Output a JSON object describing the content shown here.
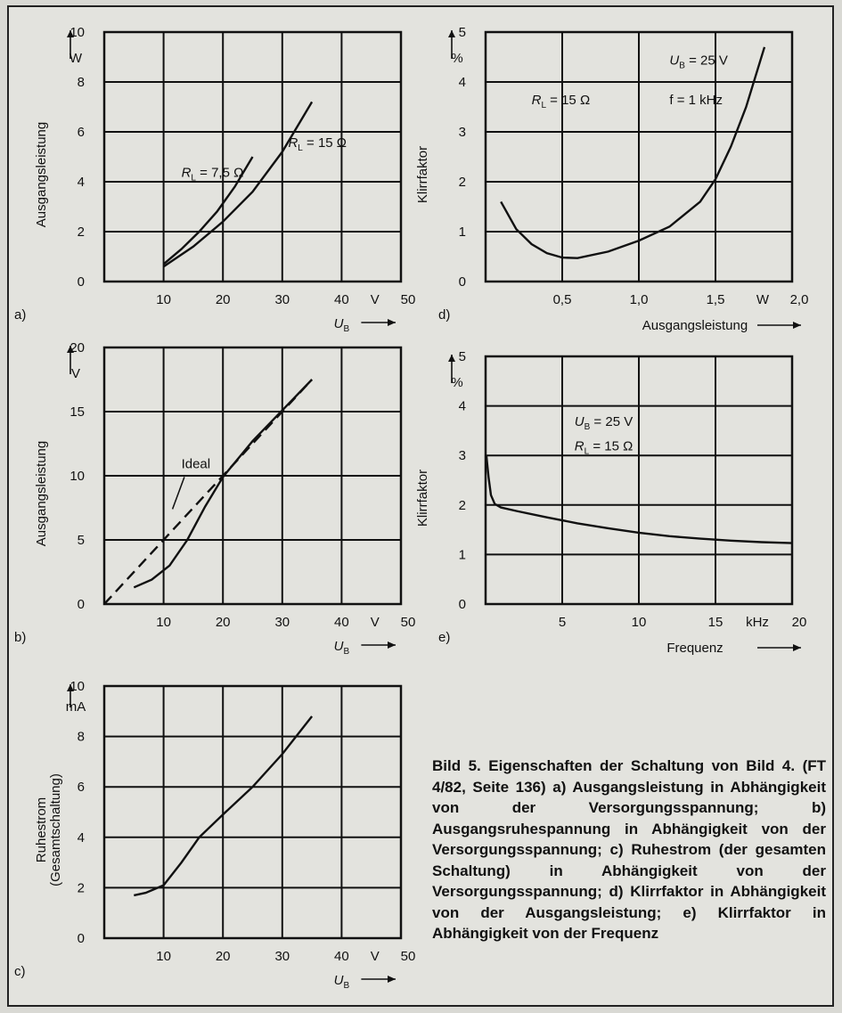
{
  "caption": "Bild 5. Eigenschaften der Schaltung von Bild 4. (FT 4/82, Seite 136) a) Ausgangsleistung in Abhängigkeit von der Versorgungsspannung; b) Ausgangsruhespannung in Abhängigkeit von der Versorgungsspannung; c) Ruhestrom (der gesamten Schaltung) in Abhängigkeit von der Versorgungsspannung; d) Klirrfaktor in Abhängigkeit von der Ausgangsleistung; e) Klirrfaktor in Abhängigkeit von der Frequenz",
  "chart_data": [
    {
      "id": "a",
      "type": "line",
      "panel_label": "a)",
      "ylabel": "Ausgangsleistung",
      "yunit": "W",
      "xlabel": "U",
      "xlabel_sub": "B",
      "xunit": "V",
      "xlim": [
        0,
        50
      ],
      "ylim": [
        0,
        10
      ],
      "xticks": [
        10,
        20,
        30,
        40,
        50
      ],
      "yticks": [
        0,
        2,
        4,
        6,
        8,
        10
      ],
      "grid": true,
      "series": [
        {
          "name": "R_L = 7,5 Ω",
          "x": [
            10,
            13,
            16,
            19,
            22,
            25
          ],
          "y": [
            0.7,
            1.3,
            2.0,
            2.8,
            3.8,
            5.0
          ]
        },
        {
          "name": "R_L = 15 Ω",
          "x": [
            10,
            15,
            20,
            25,
            30,
            35
          ],
          "y": [
            0.6,
            1.4,
            2.4,
            3.6,
            5.2,
            7.2
          ]
        }
      ],
      "annotations": [
        {
          "text": "R_L = 7,5 Ω",
          "x": 13,
          "y": 4.2
        },
        {
          "text": "R_L = 15 Ω",
          "x": 31,
          "y": 5.4
        }
      ]
    },
    {
      "id": "b",
      "type": "line",
      "panel_label": "b)",
      "ylabel": "Ausgangsleistung",
      "yunit": "V",
      "xlabel": "U",
      "xlabel_sub": "B",
      "xunit": "V",
      "xlim": [
        0,
        50
      ],
      "ylim": [
        0,
        20
      ],
      "xticks": [
        10,
        20,
        30,
        40,
        50
      ],
      "yticks": [
        0,
        5,
        10,
        15,
        20
      ],
      "grid": true,
      "series": [
        {
          "name": "Ideal",
          "dashed": true,
          "x": [
            0,
            35
          ],
          "y": [
            0,
            17.5
          ]
        },
        {
          "name": "",
          "x": [
            5,
            8,
            11,
            14,
            17,
            20,
            25,
            30,
            35
          ],
          "y": [
            1.3,
            1.9,
            3.0,
            5.0,
            7.6,
            9.9,
            12.7,
            15.1,
            17.5
          ]
        }
      ],
      "annotations": [
        {
          "text": "Ideal",
          "x": 13,
          "y": 10.6
        }
      ]
    },
    {
      "id": "c",
      "type": "line",
      "panel_label": "c)",
      "ylabel": "Ruhestrom",
      "ylabel2": "(Gesamtschaltung)",
      "yunit": "mA",
      "xlabel": "U",
      "xlabel_sub": "B",
      "xunit": "V",
      "xlim": [
        0,
        50
      ],
      "ylim": [
        0,
        10
      ],
      "xticks": [
        10,
        20,
        30,
        40,
        50
      ],
      "yticks": [
        0,
        2,
        4,
        6,
        8,
        10
      ],
      "grid": true,
      "series": [
        {
          "name": "",
          "x": [
            5,
            7,
            10,
            13,
            16,
            20,
            25,
            30,
            35
          ],
          "y": [
            1.7,
            1.8,
            2.1,
            3.0,
            4.0,
            4.9,
            6.0,
            7.3,
            8.8
          ]
        }
      ]
    },
    {
      "id": "d",
      "type": "line",
      "panel_label": "d)",
      "ylabel": "Klirrfaktor",
      "yunit": "%",
      "xlabel": "Ausgangsleistung",
      "xunit": "W",
      "xlim": [
        0,
        2.0
      ],
      "ylim": [
        0,
        5
      ],
      "xticks": [
        0.5,
        1.0,
        1.5,
        2.0
      ],
      "xticklabels": [
        "0,5",
        "1,0",
        "1,5",
        "2,0"
      ],
      "yticks": [
        0,
        1,
        2,
        3,
        4,
        5
      ],
      "grid": true,
      "series": [
        {
          "name": "",
          "x": [
            0.1,
            0.2,
            0.3,
            0.4,
            0.5,
            0.6,
            0.8,
            1.0,
            1.2,
            1.4,
            1.5,
            1.6,
            1.7,
            1.82
          ],
          "y": [
            1.6,
            1.05,
            0.75,
            0.57,
            0.48,
            0.47,
            0.6,
            0.82,
            1.1,
            1.6,
            2.05,
            2.7,
            3.5,
            4.7
          ]
        }
      ],
      "annotations": [
        {
          "text": "U_B = 25 V",
          "x": 1.2,
          "y": 4.35
        },
        {
          "text": "R_L = 15 Ω",
          "x": 0.3,
          "y": 3.55
        },
        {
          "text": "f = 1 kHz",
          "x": 1.2,
          "y": 3.55
        }
      ]
    },
    {
      "id": "e",
      "type": "line",
      "panel_label": "e)",
      "ylabel": "Klirrfaktor",
      "yunit": "%",
      "xlabel": "Frequenz",
      "xunit": "kHz",
      "xlim": [
        0,
        20
      ],
      "ylim": [
        0,
        5
      ],
      "xticks": [
        5,
        10,
        15,
        20
      ],
      "yticks": [
        0,
        1,
        2,
        3,
        4,
        5
      ],
      "grid": true,
      "series": [
        {
          "name": "",
          "x": [
            0.05,
            0.1,
            0.2,
            0.35,
            0.6,
            1,
            2,
            4,
            6,
            8,
            10,
            12,
            14,
            16,
            18,
            20
          ],
          "y": [
            3.0,
            2.85,
            2.55,
            2.2,
            2.02,
            1.95,
            1.88,
            1.75,
            1.63,
            1.53,
            1.44,
            1.37,
            1.32,
            1.28,
            1.25,
            1.23
          ]
        }
      ],
      "annotations": [
        {
          "text": "U_B = 25 V",
          "x": 5.8,
          "y": 3.6
        },
        {
          "text": "R_L = 15 Ω",
          "x": 5.8,
          "y": 3.1
        }
      ]
    }
  ]
}
